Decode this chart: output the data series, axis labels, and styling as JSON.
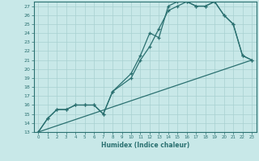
{
  "xlabel": "Humidex (Indice chaleur)",
  "bg_color": "#c8e8e8",
  "line_color": "#2a7070",
  "grid_color": "#a8d0d0",
  "xlim": [
    -0.5,
    23.5
  ],
  "ylim": [
    13,
    27.5
  ],
  "xticks": [
    0,
    1,
    2,
    3,
    4,
    5,
    6,
    7,
    8,
    9,
    10,
    11,
    12,
    13,
    14,
    15,
    16,
    17,
    18,
    19,
    20,
    21,
    22,
    23
  ],
  "yticks": [
    13,
    14,
    15,
    16,
    17,
    18,
    19,
    20,
    21,
    22,
    23,
    24,
    25,
    26,
    27
  ],
  "line1_x": [
    0,
    1,
    2,
    3,
    4,
    5,
    6,
    7,
    8,
    10,
    11,
    12,
    13,
    14,
    15,
    16,
    17,
    18,
    19,
    20,
    21,
    22,
    23
  ],
  "line1_y": [
    13,
    14.5,
    15.5,
    15.5,
    16,
    16,
    16,
    15,
    17.5,
    19.5,
    21.5,
    24,
    23.5,
    27,
    27.5,
    27.5,
    27,
    27,
    27.5,
    26,
    25,
    21.5,
    21
  ],
  "line2_x": [
    0,
    1,
    2,
    3,
    4,
    5,
    6,
    7,
    8,
    10,
    11,
    12,
    13,
    14,
    15,
    16,
    17,
    18,
    19,
    20,
    21,
    22,
    23
  ],
  "line2_y": [
    13,
    14.5,
    15.5,
    15.5,
    16,
    16,
    16,
    15,
    17.5,
    19,
    21,
    22.5,
    24.5,
    26.5,
    27,
    27.5,
    27,
    27,
    27.5,
    26,
    25,
    21.5,
    21
  ],
  "line3_x": [
    0,
    23
  ],
  "line3_y": [
    13,
    21
  ]
}
